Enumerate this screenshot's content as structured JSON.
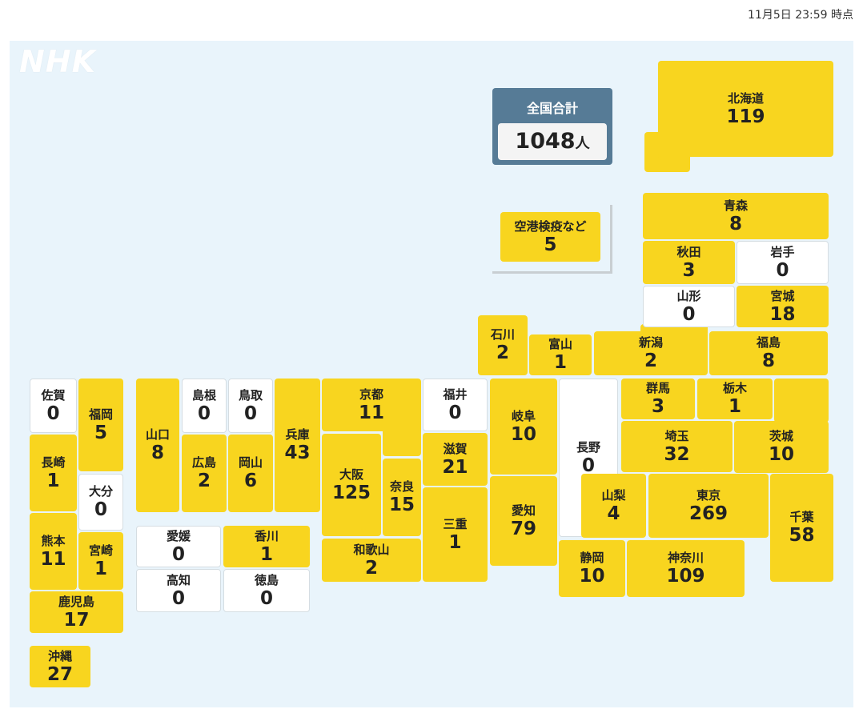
{
  "timestamp": "11月5日 23:59 時点",
  "logo": "NHK",
  "total": {
    "label": "全国合計",
    "value": 1048,
    "unit": "人"
  },
  "airport": {
    "label": "空港検疫など",
    "value": 5
  },
  "prefectures": [
    {
      "name": "北海道",
      "value": 119
    },
    {
      "name": "青森",
      "value": 8
    },
    {
      "name": "秋田",
      "value": 3
    },
    {
      "name": "岩手",
      "value": 0
    },
    {
      "name": "山形",
      "value": 0
    },
    {
      "name": "宮城",
      "value": 18
    },
    {
      "name": "石川",
      "value": 2
    },
    {
      "name": "富山",
      "value": 1
    },
    {
      "name": "新潟",
      "value": 2
    },
    {
      "name": "福島",
      "value": 8
    },
    {
      "name": "佐賀",
      "value": 0
    },
    {
      "name": "福岡",
      "value": 5
    },
    {
      "name": "山口",
      "value": 8
    },
    {
      "name": "島根",
      "value": 0
    },
    {
      "name": "鳥取",
      "value": 0
    },
    {
      "name": "兵庫",
      "value": 43
    },
    {
      "name": "京都",
      "value": 11
    },
    {
      "name": "福井",
      "value": 0
    },
    {
      "name": "岐阜",
      "value": 10
    },
    {
      "name": "長野",
      "value": 0
    },
    {
      "name": "群馬",
      "value": 3
    },
    {
      "name": "栃木",
      "value": 1
    },
    {
      "name": "茨城",
      "value": 10
    },
    {
      "name": "長崎",
      "value": 1
    },
    {
      "name": "広島",
      "value": 2
    },
    {
      "name": "岡山",
      "value": 6
    },
    {
      "name": "大阪",
      "value": 125
    },
    {
      "name": "奈良",
      "value": 15
    },
    {
      "name": "滋賀",
      "value": 21
    },
    {
      "name": "埼玉",
      "value": 32
    },
    {
      "name": "大分",
      "value": 0
    },
    {
      "name": "三重",
      "value": 1
    },
    {
      "name": "愛知",
      "value": 79
    },
    {
      "name": "山梨",
      "value": 4
    },
    {
      "name": "東京",
      "value": 269
    },
    {
      "name": "千葉",
      "value": 58
    },
    {
      "name": "熊本",
      "value": 11
    },
    {
      "name": "宮崎",
      "value": 1
    },
    {
      "name": "愛媛",
      "value": 0
    },
    {
      "name": "香川",
      "value": 1
    },
    {
      "name": "和歌山",
      "value": 2
    },
    {
      "name": "静岡",
      "value": 10
    },
    {
      "name": "神奈川",
      "value": 109
    },
    {
      "name": "高知",
      "value": 0
    },
    {
      "name": "徳島",
      "value": 0
    },
    {
      "name": "鹿児島",
      "value": 17
    },
    {
      "name": "沖縄",
      "value": 27
    }
  ]
}
